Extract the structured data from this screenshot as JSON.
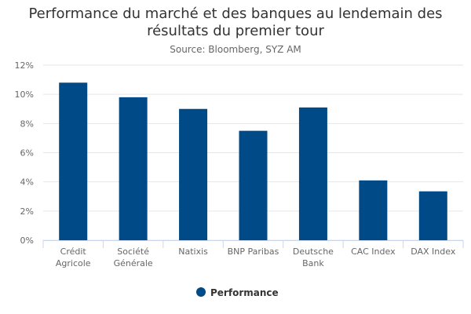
{
  "chart_data": {
    "type": "bar",
    "title_lines": [
      "Performance du marché et des banques au lendemain des",
      "résultats du premier tour"
    ],
    "subtitle": "Source: Bloomberg, SYZ AM",
    "categories": [
      [
        "Crédit",
        "Agricole"
      ],
      [
        "Société",
        "Générale"
      ],
      [
        "Natixis"
      ],
      [
        "BNP Paribas"
      ],
      [
        "Deutsche",
        "Bank"
      ],
      [
        "CAC Index"
      ],
      [
        "DAX Index"
      ]
    ],
    "series": [
      {
        "name": "Performance",
        "values": [
          10.8,
          9.8,
          9.0,
          7.5,
          9.1,
          4.1,
          3.35
        ]
      }
    ],
    "y_ticks": [
      0,
      2,
      4,
      6,
      8,
      10,
      12
    ],
    "y_tick_suffix": "%",
    "ylim": [
      0,
      12
    ],
    "xlabel": "",
    "ylabel": "",
    "grid": true,
    "legend": "bottom-center",
    "bar_color": "#004a87"
  }
}
